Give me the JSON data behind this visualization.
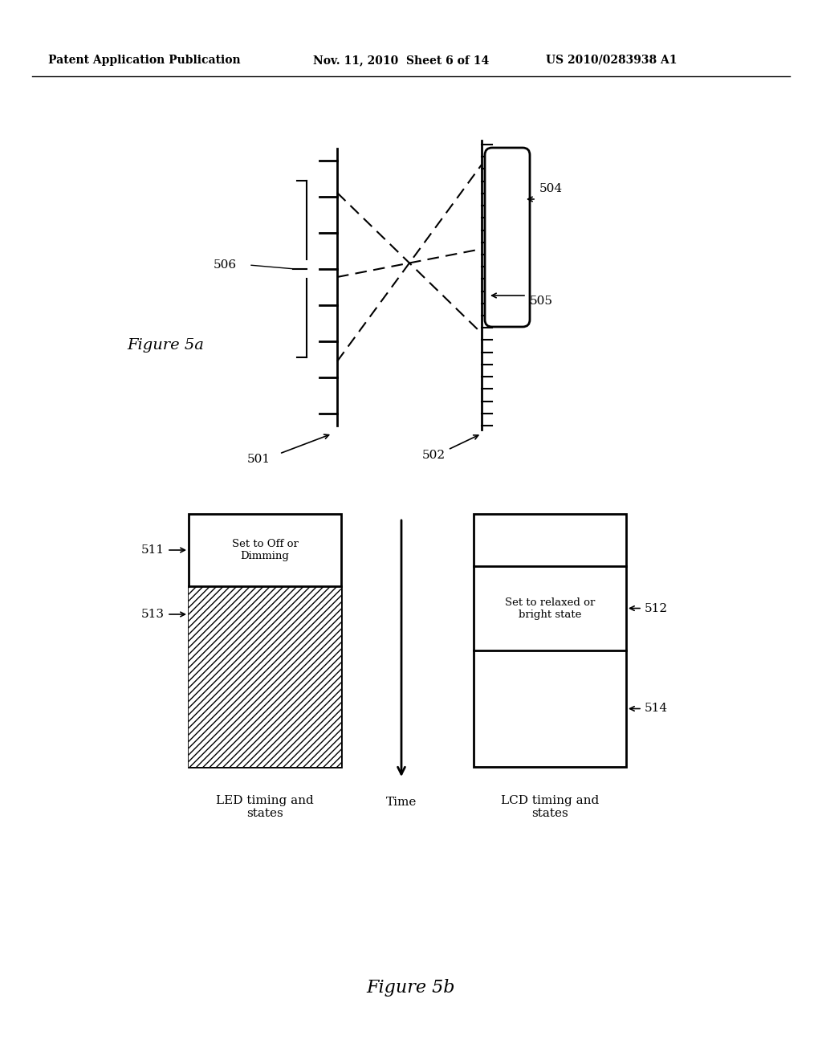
{
  "header_left": "Patent Application Publication",
  "header_mid": "Nov. 11, 2010  Sheet 6 of 14",
  "header_right": "US 2010/0283938 A1",
  "fig5a_label": "Figure 5a",
  "fig5b_label": "Figure 5b",
  "label_501": "501",
  "label_502": "502",
  "label_504": "504",
  "label_505": "505",
  "label_506": "506",
  "label_511": "511",
  "label_512": "512",
  "label_513": "513",
  "label_514": "514",
  "led_box_label": "LED timing and\nstates",
  "lcd_box_label": "LCD timing and\nstates",
  "time_label": "Time",
  "set_off_dimming": "Set to Off or\nDimming",
  "set_relaxed": "Set to relaxed or\nbright state",
  "bg_color": "#ffffff",
  "line_color": "#000000"
}
